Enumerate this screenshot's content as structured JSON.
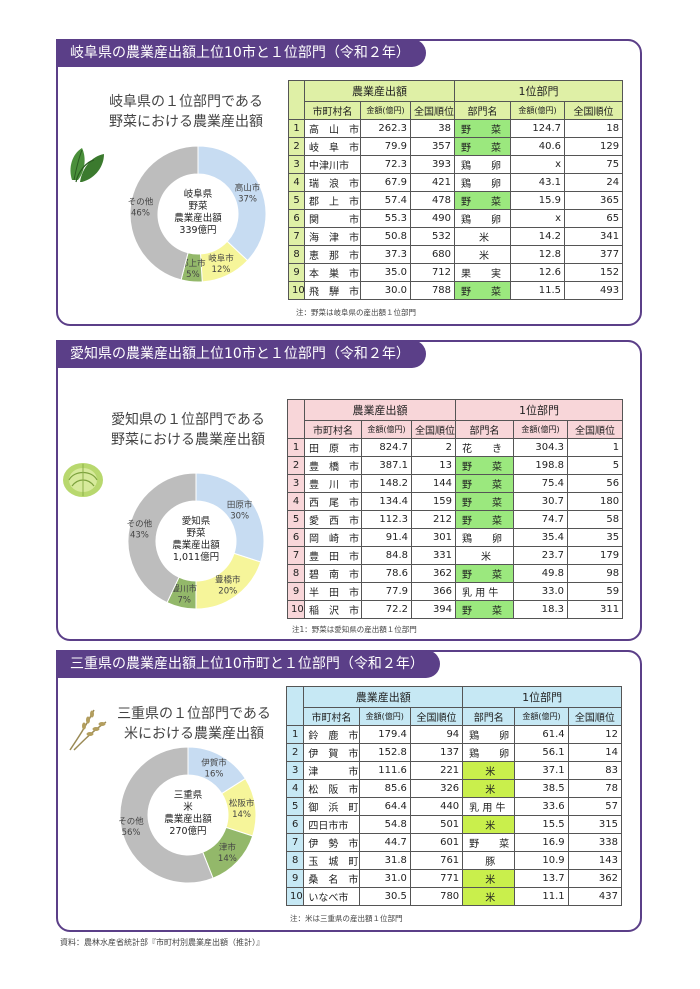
{
  "source": "資料：農林水産省統計部『市町村別農業産出額（推計）』",
  "sections": [
    {
      "title": "岐阜県の農業産出額上位10市と１位部門（令和２年）",
      "caption": [
        "岐阜県の１位部門である",
        "野菜における農業産出額"
      ],
      "icon": "vegetable-leaf-icon",
      "donut": {
        "center": [
          "岐阜県",
          "野菜",
          "農業産出額",
          "339億円"
        ],
        "slices": [
          {
            "name": "高山市",
            "pct": 37,
            "label": "37%",
            "color": "#c7dcf2"
          },
          {
            "name": "岐阜市",
            "pct": 12,
            "label": "12%",
            "color": "#f6f59a"
          },
          {
            "name": "郡上市",
            "pct": 5,
            "label": "5%",
            "color": "#93b86a"
          },
          {
            "name": "その他",
            "pct": 46,
            "label": "46%",
            "color": "#bdbdbd"
          }
        ]
      },
      "header_color": "#dff0a6",
      "group_labels": [
        "農業産出額",
        "1位部門"
      ],
      "col_labels": [
        "市町村名",
        "金額(億円)",
        "全国順位",
        "部門名",
        "金額(億円)",
        "全国順位"
      ],
      "rows": [
        [
          "1",
          "高　山　市",
          "262.3",
          "38",
          "野　　菜",
          "124.7",
          "18"
        ],
        [
          "2",
          "岐　阜　市",
          "79.9",
          "357",
          "野　　菜",
          "40.6",
          "129"
        ],
        [
          "3",
          "中津川市",
          "72.3",
          "393",
          "鶏　　卵",
          "x",
          "75"
        ],
        [
          "4",
          "瑞　浪　市",
          "67.9",
          "421",
          "鶏　　卵",
          "43.1",
          "24"
        ],
        [
          "5",
          "郡　上　市",
          "57.4",
          "478",
          "野　　菜",
          "15.9",
          "365"
        ],
        [
          "6",
          "関　　　市",
          "55.3",
          "490",
          "鶏　　卵",
          "x",
          "65"
        ],
        [
          "7",
          "海　津　市",
          "50.8",
          "532",
          "米",
          "14.2",
          "341"
        ],
        [
          "8",
          "恵　那　市",
          "37.3",
          "680",
          "米",
          "12.8",
          "377"
        ],
        [
          "9",
          "本　巣　市",
          "35.0",
          "712",
          "果　　実",
          "12.6",
          "152"
        ],
        [
          "10",
          "飛　騨　市",
          "30.0",
          "788",
          "野　　菜",
          "11.5",
          "493"
        ]
      ],
      "highlight_sector": "野　　菜",
      "highlight_color": "#9be87e",
      "note": "注：野菜は岐阜県の産出額１位部門"
    },
    {
      "title": "愛知県の農業産出額上位10市と１位部門（令和２年）",
      "caption": [
        "愛知県の１位部門である",
        "野菜における農業産出額"
      ],
      "icon": "cabbage-icon",
      "donut": {
        "center": [
          "愛知県",
          "野菜",
          "農業産出額",
          "1,011億円"
        ],
        "slices": [
          {
            "name": "田原市",
            "pct": 30,
            "label": "30%",
            "color": "#c7dcf2"
          },
          {
            "name": "豊橋市",
            "pct": 20,
            "label": "20%",
            "color": "#f6f59a"
          },
          {
            "name": "豊川市",
            "pct": 7,
            "label": "7%",
            "color": "#93b86a"
          },
          {
            "name": "その他",
            "pct": 43,
            "label": "43%",
            "color": "#bdbdbd"
          }
        ]
      },
      "header_color": "#f8d6d9",
      "group_labels": [
        "農業産出額",
        "1位部門"
      ],
      "col_labels": [
        "市町村名",
        "金額(億円)",
        "全国順位",
        "部門名",
        "金額(億円)",
        "全国順位"
      ],
      "rows": [
        [
          "1",
          "田　原　市",
          "824.7",
          "2",
          "花　　き",
          "304.3",
          "1"
        ],
        [
          "2",
          "豊　橋　市",
          "387.1",
          "13",
          "野　　菜",
          "198.8",
          "5"
        ],
        [
          "3",
          "豊　川　市",
          "148.2",
          "144",
          "野　　菜",
          "75.4",
          "56"
        ],
        [
          "4",
          "西　尾　市",
          "134.4",
          "159",
          "野　　菜",
          "30.7",
          "180"
        ],
        [
          "5",
          "愛　西　市",
          "112.3",
          "212",
          "野　　菜",
          "74.7",
          "58"
        ],
        [
          "6",
          "岡　崎　市",
          "91.4",
          "301",
          "鶏　　卵",
          "35.4",
          "35"
        ],
        [
          "7",
          "豊　田　市",
          "84.8",
          "331",
          "米",
          "23.7",
          "179"
        ],
        [
          "8",
          "碧　南　市",
          "78.6",
          "362",
          "野　　菜",
          "49.8",
          "98"
        ],
        [
          "9",
          "半　田　市",
          "77.9",
          "366",
          "乳 用 牛",
          "33.0",
          "59"
        ],
        [
          "10",
          "稲　沢　市",
          "72.2",
          "394",
          "野　　菜",
          "18.3",
          "311"
        ]
      ],
      "highlight_sector": "野　　菜",
      "highlight_color": "#9be87e",
      "note": "注1：野菜は愛知県の産出額１位部門"
    },
    {
      "title": "三重県の農業産出額上位10市町と１位部門（令和２年）",
      "caption": [
        "三重県の１位部門である",
        "米における農業産出額"
      ],
      "icon": "rice-plant-icon",
      "donut": {
        "center": [
          "三重県",
          "米",
          "農業産出額",
          "270億円"
        ],
        "slices": [
          {
            "name": "伊賀市",
            "pct": 16,
            "label": "16%",
            "color": "#c7dcf2"
          },
          {
            "name": "松阪市",
            "pct": 14,
            "label": "14%",
            "color": "#f6f59a"
          },
          {
            "name": "津市",
            "pct": 14,
            "label": "14%",
            "color": "#93b86a"
          },
          {
            "name": "その他",
            "pct": 56,
            "label": "56%",
            "color": "#bdbdbd"
          }
        ]
      },
      "header_color": "#c6e8f4",
      "group_labels": [
        "農業産出額",
        "1位部門"
      ],
      "col_labels": [
        "市町村名",
        "金額(億円)",
        "全国順位",
        "部門名",
        "金額(億円)",
        "全国順位"
      ],
      "rows": [
        [
          "1",
          "鈴　鹿　市",
          "179.4",
          "94",
          "鶏　　卵",
          "61.4",
          "12"
        ],
        [
          "2",
          "伊　賀　市",
          "152.8",
          "137",
          "鶏　　卵",
          "56.1",
          "14"
        ],
        [
          "3",
          "津　　　市",
          "111.6",
          "221",
          "米",
          "37.1",
          "83"
        ],
        [
          "4",
          "松　阪　市",
          "85.6",
          "326",
          "米",
          "38.5",
          "78"
        ],
        [
          "5",
          "御　浜　町",
          "64.4",
          "440",
          "乳 用 牛",
          "33.6",
          "57"
        ],
        [
          "6",
          "四日市市",
          "54.8",
          "501",
          "米",
          "15.5",
          "315"
        ],
        [
          "7",
          "伊　勢　市",
          "44.7",
          "601",
          "野　　菜",
          "16.9",
          "338"
        ],
        [
          "8",
          "玉　城　町",
          "31.8",
          "761",
          "豚",
          "10.9",
          "143"
        ],
        [
          "9",
          "桑　名　市",
          "31.0",
          "771",
          "米",
          "13.7",
          "362"
        ],
        [
          "10",
          "いなべ市",
          "30.5",
          "780",
          "米",
          "11.1",
          "437"
        ]
      ],
      "highlight_sector": "米",
      "highlight_color": "#c9ef4c",
      "note": "注：米は三重県の産出額１位部門"
    }
  ]
}
